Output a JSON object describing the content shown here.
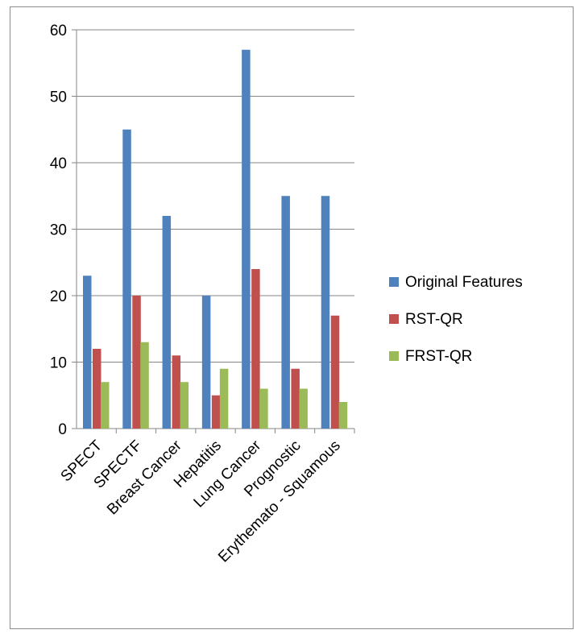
{
  "chart_data": {
    "type": "bar",
    "categories": [
      "SPECT",
      "SPECTF",
      "Breast Cancer",
      "Hepatitis",
      "Lung Cancer",
      "Prognostic",
      "Erythemato - Squamous"
    ],
    "series": [
      {
        "name": "Original Features",
        "values": [
          23,
          45,
          32,
          20,
          57,
          35,
          35
        ],
        "color": "#4f81bd"
      },
      {
        "name": "RST-QR",
        "values": [
          12,
          20,
          11,
          5,
          24,
          9,
          17
        ],
        "color": "#c0504d"
      },
      {
        "name": "FRST-QR",
        "values": [
          7,
          13,
          7,
          9,
          6,
          6,
          4
        ],
        "color": "#9bbb59"
      }
    ],
    "ylim": [
      0,
      60
    ],
    "yticks": [
      0,
      10,
      20,
      30,
      40,
      50,
      60
    ],
    "grid": true,
    "legend_position": "right",
    "title": "",
    "xlabel": "",
    "ylabel": ""
  }
}
